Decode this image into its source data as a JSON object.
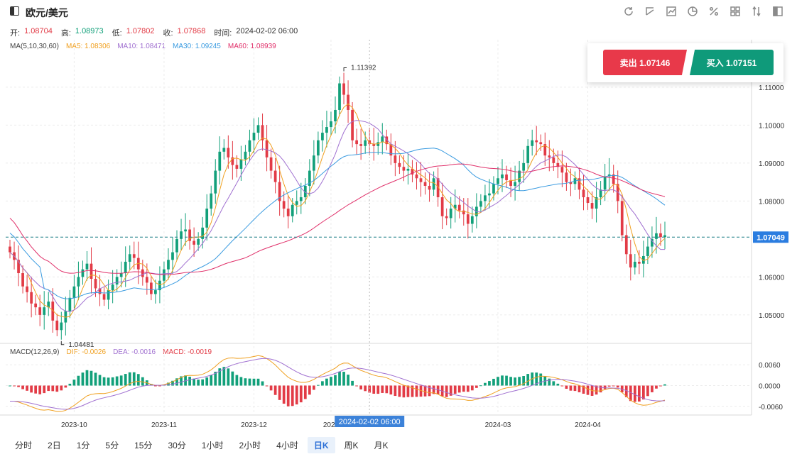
{
  "header": {
    "symbol": "欧元/美元",
    "icons": [
      "refresh-icon",
      "draw-icon",
      "chart-type-icon",
      "pie-icon",
      "percent-icon",
      "layout-icon",
      "compare-icon",
      "fullscreen-icon"
    ]
  },
  "ohlc": {
    "open_label": "开:",
    "open": "1.08704",
    "high_label": "高:",
    "high": "1.08973",
    "low_label": "低:",
    "low": "1.07802",
    "close_label": "收:",
    "close": "1.07868",
    "time_label": "时间:",
    "time": "2024-02-02 06:00"
  },
  "ma_legend": {
    "title": "MA(5,10,30,60)",
    "ma5": "MA5: 1.08306",
    "ma10": "MA10: 1.08471",
    "ma30": "MA30: 1.09245",
    "ma60": "MA60: 1.08939"
  },
  "macd_legend": {
    "title": "MACD(12,26,9)",
    "dif": "DIF: -0.0026",
    "dea": "DEA: -0.0016",
    "macd": "MACD: -0.0019"
  },
  "trade": {
    "sell": "卖出 1.07146",
    "buy": "买入 1.07151"
  },
  "periods": [
    "分时",
    "2日",
    "1分",
    "5分",
    "15分",
    "30分",
    "1小时",
    "2小时",
    "4小时",
    "日K",
    "周K",
    "月K"
  ],
  "active_period": "日K",
  "colors": {
    "up": "#12a07a",
    "down": "#e23b46",
    "ma5": "#f0a020",
    "ma10": "#a070d0",
    "ma30": "#3a9be0",
    "ma60": "#e0306a",
    "dif": "#f0a020",
    "dea": "#a070d0",
    "accent": "#2b6fd6"
  },
  "chart_data": {
    "type": "candlestick",
    "price_axis": [
      "1.11000",
      "1.10000",
      "1.09000",
      "1.08000",
      "1.07049",
      "1.06000",
      "1.05000"
    ],
    "price_ylim": [
      1.0425,
      1.1225
    ],
    "current_price": "1.07049",
    "high_marker": "1.11392",
    "low_marker": "1.04481",
    "macd_axis": [
      "0.0060",
      "0.0000",
      "-0.0060"
    ],
    "macd_ylim": [
      -0.0085,
      0.0085
    ],
    "date_ticks": [
      "2023-10",
      "2023-11",
      "2023-12",
      "2024",
      "2024-03",
      "2024-04"
    ],
    "crosshair_label": "2024-02-02 06:00",
    "close_series": [
      1.0665,
      1.0645,
      1.061,
      1.0575,
      1.056,
      1.053,
      1.052,
      1.05,
      1.052,
      1.0535,
      1.0485,
      1.046,
      1.048,
      1.051,
      1.0545,
      1.0575,
      1.06,
      1.062,
      1.0635,
      1.0595,
      1.057,
      1.0555,
      1.054,
      1.0565,
      1.058,
      1.06,
      1.061,
      1.064,
      1.066,
      1.065,
      1.062,
      1.06,
      1.0585,
      1.0555,
      1.0565,
      1.059,
      1.062,
      1.0645,
      1.0665,
      1.07,
      1.072,
      1.0725,
      1.0695,
      1.0685,
      1.07,
      1.073,
      1.078,
      1.082,
      1.088,
      1.093,
      1.094,
      1.0915,
      1.0895,
      1.0885,
      1.091,
      1.093,
      1.096,
      1.098,
      1.1,
      1.096,
      1.0915,
      1.088,
      1.085,
      1.08,
      1.078,
      1.076,
      1.079,
      1.08,
      1.081,
      1.084,
      1.088,
      1.092,
      1.096,
      1.098,
      1.0995,
      1.101,
      1.104,
      1.111,
      1.108,
      1.104,
      1.096,
      1.095,
      1.0945,
      1.096,
      1.095,
      1.0945,
      1.0955,
      1.097,
      1.095,
      1.092,
      1.09,
      1.089,
      1.088,
      1.0885,
      1.087,
      1.086,
      1.085,
      1.084,
      1.083,
      1.086,
      1.081,
      1.076,
      1.0755,
      1.078,
      1.079,
      1.0775,
      1.0765,
      1.074,
      1.076,
      1.0785,
      1.08,
      1.0815,
      1.082,
      1.0845,
      1.086,
      1.087,
      1.0855,
      1.084,
      1.085,
      1.088,
      1.09,
      1.0945,
      1.096,
      1.0955,
      1.095,
      1.092,
      1.0915,
      1.09,
      1.089,
      1.0875,
      1.085,
      1.0845,
      1.086,
      1.083,
      1.081,
      1.0795,
      1.078,
      1.081,
      1.083,
      1.0865,
      1.087,
      1.0845,
      1.08,
      1.071,
      1.066,
      1.0625,
      1.064,
      1.0635,
      1.0655,
      1.068,
      1.07,
      1.0715,
      1.0705,
      1.071
    ]
  }
}
